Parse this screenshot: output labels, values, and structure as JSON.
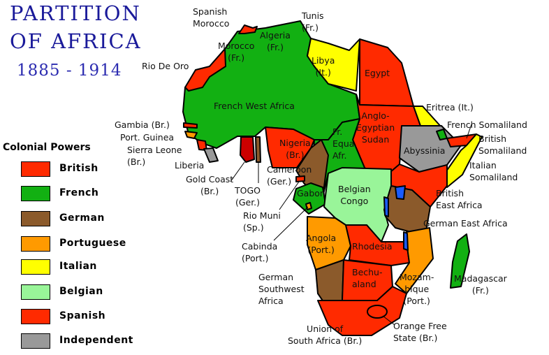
{
  "title": {
    "line1": "PARTITION",
    "line2": "OF AFRICA",
    "years": "1885 - 1914"
  },
  "legend": {
    "heading": "Colonial Powers",
    "items": [
      {
        "label": "British",
        "color": "#ff2a00"
      },
      {
        "label": "French",
        "color": "#12b012"
      },
      {
        "label": "German",
        "color": "#8b5a2b"
      },
      {
        "label": "Portuguese",
        "color": "#ff9a00"
      },
      {
        "label": "Italian",
        "color": "#ffff00"
      },
      {
        "label": "Belgian",
        "color": "#99f599"
      },
      {
        "label": "Spanish",
        "color": "#ff2a00"
      },
      {
        "label": "Independent",
        "color": "#999999"
      }
    ]
  },
  "labels": {
    "spanish_morocco": "Spanish\nMorocco",
    "tunis": "Tunis\n(Fr.)",
    "algeria": "Algeria\n(Fr.)",
    "morocco": "Morocco\n(Fr.)",
    "libya": "Libya\n(It.)",
    "egypt": "Egypt",
    "rio_de_oro": "Rio De Oro",
    "french_west_africa": "French West Africa",
    "sudan": "Anglo-\nEgyptian\nSudan",
    "eritrea": "Eritrea (It.)",
    "french_somaliland": "French Somaliland",
    "british_somaliland": "British\nSomaliland",
    "italian_somaliland": "Italian\nSomaliland",
    "abyssinia": "Abyssinia",
    "gambia": "Gambia (Br.)",
    "port_guinea": "Port. Guinea",
    "sierra_leone": "Sierra Leone\n(Br.)",
    "liberia": "Liberia",
    "nigeria": "Nigeria\n(Br.)",
    "fr_equa_afr": "Fr.\nEqua.\nAfr.",
    "cameroon": "Cameroon\n(Ger.)",
    "gold_coast": "Gold Coast\n(Br.)",
    "togo": "TOGO\n(Ger.)",
    "gabon": "Gabon",
    "belgian_congo": "Belgian\nCongo",
    "british_east_africa": "British\nEast Africa",
    "german_east_africa": "German East Africa",
    "rio_muni": "Rio Muni\n(Sp.)",
    "angola": "Angola\n(Port.)",
    "rhodesia": "Rhodesia",
    "cabinda": "Cabinda\n(Port.)",
    "german_southwest_africa": "German\nSouthwest\nAfrica",
    "bechuanaland": "Bechu-\naland",
    "mozambique": "Mozam-\nbique\n(Port.)",
    "madagascar": "Madagascar\n(Fr.)",
    "orange_free_state": "Orange Free\nState (Br.)",
    "union_south_africa": "Union of\nSouth Africa (Br.)"
  },
  "colors": {
    "lake": "#1a5cff",
    "gold_coast": "#cc0000"
  }
}
